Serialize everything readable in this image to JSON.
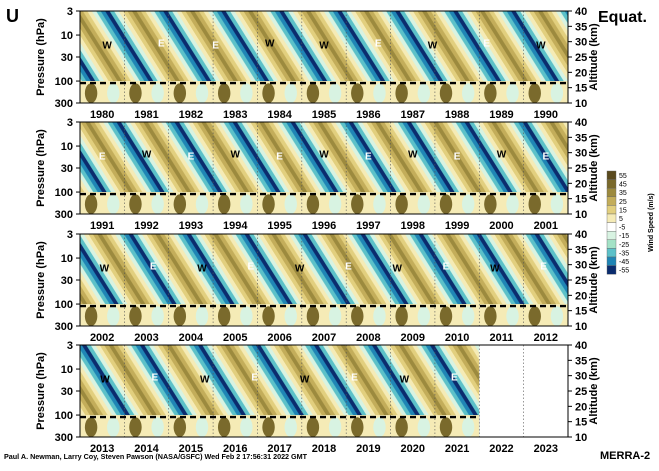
{
  "figure": {
    "panel_letter": "U",
    "region": "Equat.",
    "footer_credit": "Paul A. Newman, Larry Coy, Steven Pawson (NASA/GSFC) Wed Feb  2 17:56:31 2022 GMT",
    "dataset": "MERRA-2"
  },
  "colors": {
    "c55": "#5a4a1e",
    "c45": "#7a6a2c",
    "c35": "#9c8a3e",
    "c25": "#c3ad5a",
    "c15": "#e2cf7e",
    "c5": "#f5ebb6",
    "cm5": "#ffffff",
    "cm15": "#d8f3e2",
    "cm25": "#a3e2c6",
    "cm35": "#5cc1c9",
    "cm45": "#1f85b5",
    "cm55": "#0b2c6e"
  },
  "chart_data": {
    "type": "heatmap",
    "variable": "Zonal wind U",
    "y_left": {
      "label": "Pressure (hPa)",
      "ticks": [
        "3",
        "10",
        "30",
        "100",
        "300"
      ],
      "scale": "log"
    },
    "y_right": {
      "label": "Altitude (km)",
      "ticks": [
        "40",
        "35",
        "30",
        "25",
        "20",
        "15",
        "10"
      ]
    },
    "colorbar": {
      "label": "Wind Speed (m/s)",
      "ticks": [
        "55",
        "45",
        "35",
        "25",
        "15",
        "5",
        "-5",
        "-15",
        "-25",
        "-35",
        "-45",
        "-55"
      ]
    },
    "panels": [
      {
        "years": [
          "1980",
          "1981",
          "1982",
          "1983",
          "1984",
          "1985",
          "1986",
          "1987",
          "1988",
          "1989",
          "1990"
        ],
        "phase_labels": [
          "W",
          "E",
          "E",
          "W",
          "W",
          "E",
          "W",
          "E",
          "W"
        ]
      },
      {
        "years": [
          "1991",
          "1992",
          "1993",
          "1994",
          "1995",
          "1996",
          "1997",
          "1998",
          "1999",
          "2000",
          "2001"
        ],
        "phase_labels": [
          "E",
          "W",
          "E",
          "W",
          "E",
          "W",
          "E",
          "W",
          "E",
          "W",
          "E"
        ]
      },
      {
        "years": [
          "2002",
          "2003",
          "2004",
          "2005",
          "2006",
          "2007",
          "2008",
          "2009",
          "2010",
          "2011",
          "2012"
        ],
        "phase_labels": [
          "W",
          "E",
          "W",
          "E",
          "W",
          "E",
          "W",
          "E",
          "W",
          "E"
        ]
      },
      {
        "years": [
          "2013",
          "2014",
          "2015",
          "2016",
          "2017",
          "2018",
          "2019",
          "2020",
          "2021",
          "2022",
          "2023"
        ],
        "phase_labels": [
          "W",
          "E",
          "W",
          "E",
          "W",
          "E",
          "W",
          "E"
        ]
      }
    ],
    "tropopause": "dashed line near 100 hPa"
  }
}
